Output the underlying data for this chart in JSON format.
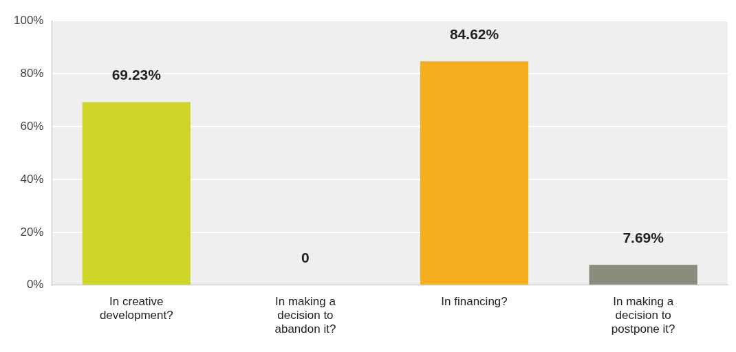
{
  "chart_data": {
    "type": "bar",
    "categories": [
      "In creative development?",
      "In making a decision to abandon it?",
      "In financing?",
      "In making a decision to postpone it?"
    ],
    "values": [
      69.23,
      0,
      84.62,
      7.69
    ],
    "colors": [
      "#d0d52a",
      "#d0d52a",
      "#f5ae1e",
      "#8a8b7a"
    ],
    "value_labels": [
      "69.23%",
      "0",
      "84.62%",
      "7.69%"
    ],
    "ylim": [
      0,
      100
    ],
    "yticks": [
      {
        "value": 0,
        "label": "0%"
      },
      {
        "value": 20,
        "label": "20%"
      },
      {
        "value": 40,
        "label": "40%"
      },
      {
        "value": 60,
        "label": "60%"
      },
      {
        "value": 80,
        "label": "80%"
      },
      {
        "value": 100,
        "label": "100%"
      }
    ],
    "grid": "y",
    "legend": false
  }
}
